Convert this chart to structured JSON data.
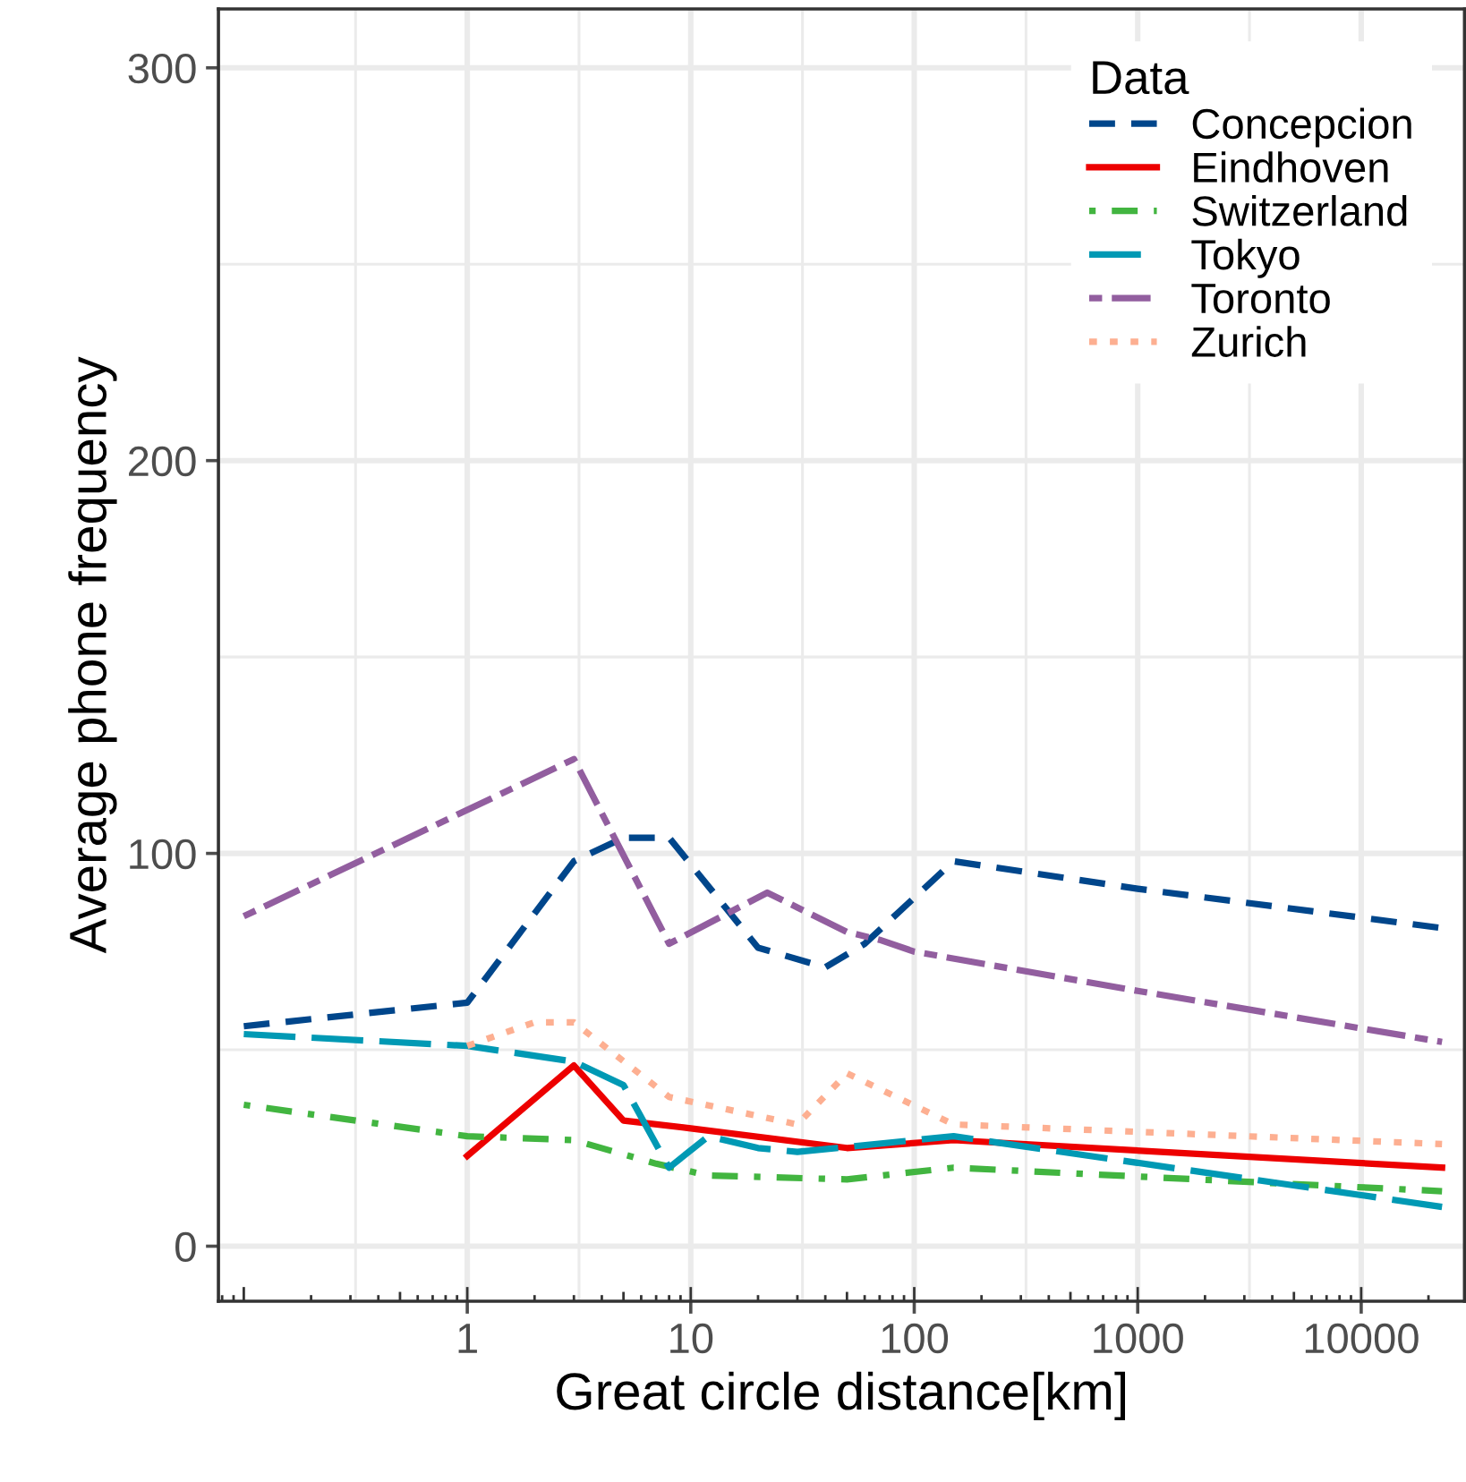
{
  "chart_data": {
    "type": "line",
    "xlabel": "Great circle distance[km]",
    "ylabel": "Average phone frequency",
    "legend_title": "Data",
    "legend": "top right",
    "grid": true,
    "log": "x",
    "xlim": [
      0.077,
      29000
    ],
    "xticks": [
      1,
      10,
      100,
      1000,
      10000
    ],
    "ylim": [
      -14,
      315
    ],
    "yticks": [
      0,
      100,
      200,
      300
    ],
    "series": [
      {
        "name": "Concepcion",
        "color": "#00468b",
        "line_style": "dashed",
        "x": [
          0.1,
          1,
          3,
          5,
          8,
          20,
          40,
          60,
          150,
          1000,
          23000
        ],
        "values": [
          56,
          62,
          98,
          104,
          104,
          76,
          71,
          77,
          98,
          91,
          81
        ]
      },
      {
        "name": "Eindhoven",
        "color": "#ed0000",
        "line_style": "solid",
        "x": [
          1,
          3,
          5,
          10,
          50,
          150,
          23000
        ],
        "values": [
          23,
          46,
          32,
          30,
          25,
          27,
          20
        ]
      },
      {
        "name": "Switzerland",
        "color": "#42b540",
        "line_style": "dashdot",
        "x": [
          0.1,
          1,
          3,
          7,
          12,
          50,
          150,
          23000
        ],
        "values": [
          36,
          28,
          27,
          21,
          18,
          17,
          20,
          14
        ]
      },
      {
        "name": "Tokyo",
        "color": "#0099b4",
        "line_style": "longdash",
        "x": [
          0.1,
          1,
          3,
          5,
          8,
          12,
          20,
          30,
          150,
          10000,
          23000
        ],
        "values": [
          54,
          51,
          47,
          41,
          20,
          28,
          25,
          24,
          28,
          13,
          10
        ]
      },
      {
        "name": "Toronto",
        "color": "#925e9f",
        "line_style": "twodash",
        "x": [
          0.1,
          3,
          8,
          22,
          50,
          70,
          100,
          1000,
          23000
        ],
        "values": [
          84,
          124,
          77,
          90,
          80,
          78,
          75,
          65,
          52
        ]
      },
      {
        "name": "Zurich",
        "color": "#fdaf91",
        "line_style": "dotted",
        "x": [
          1,
          2,
          3,
          8,
          30,
          50,
          150,
          23000
        ],
        "values": [
          51,
          57,
          57,
          38,
          31,
          44,
          31,
          26
        ]
      }
    ]
  }
}
